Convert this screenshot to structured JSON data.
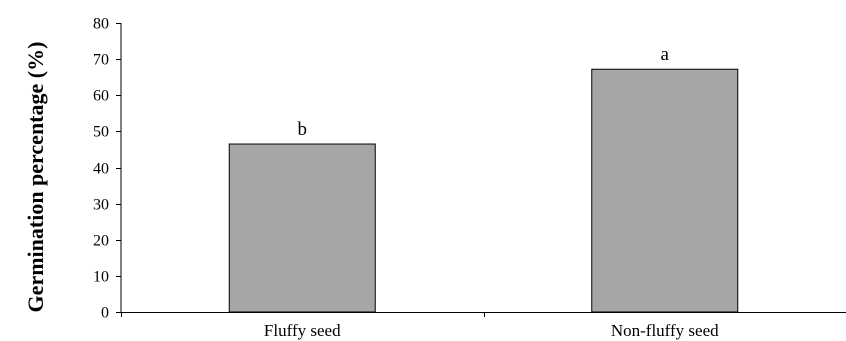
{
  "chart_data": {
    "type": "bar",
    "title": "",
    "xlabel": "",
    "ylabel": "Germination percentage (%)",
    "categories": [
      "Fluffy seed",
      "Non-fluffy seed"
    ],
    "values": [
      46.5,
      67.2
    ],
    "data_labels": [
      "b",
      "a"
    ],
    "ylim": [
      0,
      80
    ],
    "yticks": [
      0,
      10,
      20,
      30,
      40,
      50,
      60,
      70,
      80
    ],
    "grid": false,
    "legend": "none",
    "bar_color": "#a6a6a6",
    "bar_edge_color": "#000000"
  }
}
